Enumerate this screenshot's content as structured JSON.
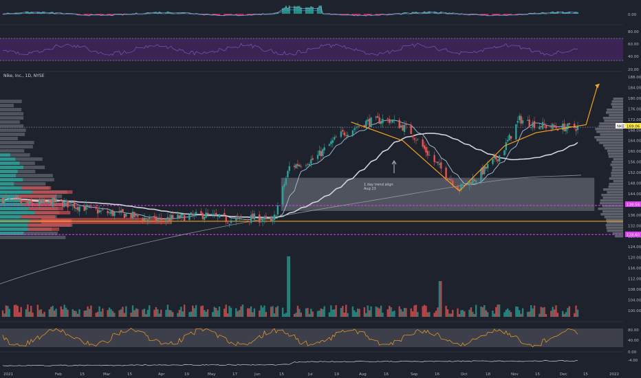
{
  "symbol_header": "Nike, Inc., 1D, NYSE",
  "ticker_badge": "NKE",
  "last_price": "169.06",
  "level_upper": "139.56",
  "level_lower": "128.60",
  "annotation": {
    "line1": "1 day trend align",
    "line2": "Aug 23"
  },
  "colors": {
    "up": "#26a69a",
    "down": "#ef5350",
    "pattern": "#f7a21b",
    "magenta": "#e040fb",
    "band": "#787b86",
    "ma_fast": "#a8c7e0",
    "ma_slow": "#d1d4dc"
  },
  "chart_data": {
    "type": "candlestick",
    "x_ticks": [
      "2021",
      "Feb",
      "15",
      "Mar",
      "15",
      "Apr",
      "19",
      "May",
      "17",
      "Jun",
      "15",
      "Jul",
      "19",
      "Aug",
      "16",
      "Sep",
      "16",
      "Oct",
      "18",
      "Nov",
      "15",
      "Dec",
      "15",
      "2022"
    ],
    "price_axis": [
      "188.00",
      "184.00",
      "180.00",
      "176.00",
      "172.00",
      "168.00",
      "164.00",
      "160.00",
      "156.00",
      "152.00",
      "148.00",
      "144.00",
      "140.00",
      "136.00",
      "132.00",
      "128.00",
      "124.00",
      "120.00",
      "116.00",
      "112.00",
      "108.00",
      "104.00",
      "100.00"
    ],
    "macd_axis": [
      "0.00"
    ],
    "rsi_axis": [
      "80.00",
      "60.00",
      "40.00",
      "20.00"
    ],
    "stoch_axis": [
      "80.00",
      "40.00",
      "0.00",
      "-4.00"
    ],
    "ylim": [
      98,
      190
    ],
    "close_path": [
      [
        "2021-01-04",
        142
      ],
      [
        "2021-01-20",
        140
      ],
      [
        "2021-02-05",
        141
      ],
      [
        "2021-02-20",
        139
      ],
      [
        "2021-03-05",
        137
      ],
      [
        "2021-03-20",
        136
      ],
      [
        "2021-04-05",
        134
      ],
      [
        "2021-04-20",
        135
      ],
      [
        "2021-05-05",
        136
      ],
      [
        "2021-05-20",
        134
      ],
      [
        "2021-06-05",
        135
      ],
      [
        "2021-06-15",
        133
      ],
      [
        "2021-06-25",
        154
      ],
      [
        "2021-07-10",
        157
      ],
      [
        "2021-07-25",
        166
      ],
      [
        "2021-08-10",
        171
      ],
      [
        "2021-08-23",
        172
      ],
      [
        "2021-09-05",
        168
      ],
      [
        "2021-09-20",
        156
      ],
      [
        "2021-10-05",
        146
      ],
      [
        "2021-10-15",
        150
      ],
      [
        "2021-10-30",
        159
      ],
      [
        "2021-11-10",
        172
      ],
      [
        "2021-11-20",
        170
      ],
      [
        "2021-12-01",
        169
      ],
      [
        "2021-12-15",
        169
      ]
    ],
    "pattern_path": [
      [
        "2021-08-01",
        171
      ],
      [
        "2021-09-01",
        164
      ],
      [
        "2021-10-05",
        145
      ],
      [
        "2021-11-01",
        162
      ],
      [
        "2021-11-20",
        167
      ],
      [
        "2021-12-20",
        170
      ],
      [
        "2021-12-27",
        185
      ]
    ],
    "levels": {
      "upper": 139.56,
      "middle": 133.6,
      "lower": 128.6,
      "last": 169.06
    },
    "box": {
      "from": "2021-06-20",
      "to": "2021-12-25",
      "top": 150,
      "bottom": 137.5
    }
  }
}
